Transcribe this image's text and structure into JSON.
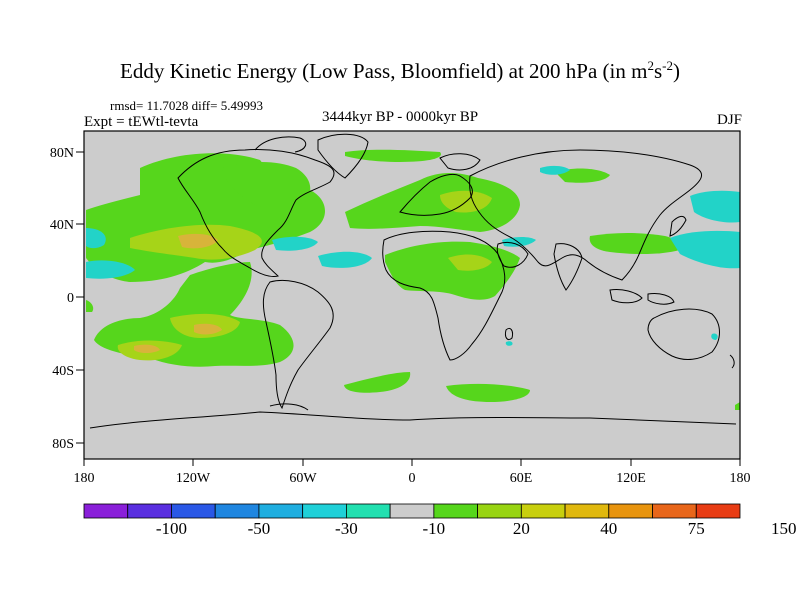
{
  "header": {
    "title": "Eddy Kinetic Energy (Low Pass, Bloomfield) at 200 hPa (in m",
    "title_sup1": "2",
    "title_mid": "s",
    "title_sup2": "-2",
    "title_end": ")",
    "stats": "rmsd= 11.7028 diff= 5.49993",
    "experiment": "Expt = tEWtl-tevta",
    "period": "3444kyr BP - 0000kyr BP",
    "season": "DJF"
  },
  "map": {
    "lat_ticks": [
      "80N",
      "40N",
      "0",
      "40S",
      "80S"
    ],
    "lon_ticks": [
      "180",
      "120W",
      "60W",
      "0",
      "60E",
      "120E",
      "180"
    ]
  },
  "colorbar": {
    "colors": [
      "#8a1fd9",
      "#5a2fe0",
      "#2a58e6",
      "#1f86e0",
      "#1faee0",
      "#1fd0d8",
      "#22e0b0",
      "#cccccc",
      "#56d61c",
      "#98d412",
      "#c8cf0e",
      "#e0b80e",
      "#e8940e",
      "#e8661a",
      "#e83c14"
    ],
    "labels": [
      "-100",
      "-50",
      "-30",
      "-10",
      "20",
      "40",
      "75",
      "150"
    ],
    "land_gray": "#cccccc",
    "light_green": "#56d61c",
    "yellow_green": "#a6d418",
    "orange": "#d8b43a",
    "cyan": "#22d3c8"
  }
}
